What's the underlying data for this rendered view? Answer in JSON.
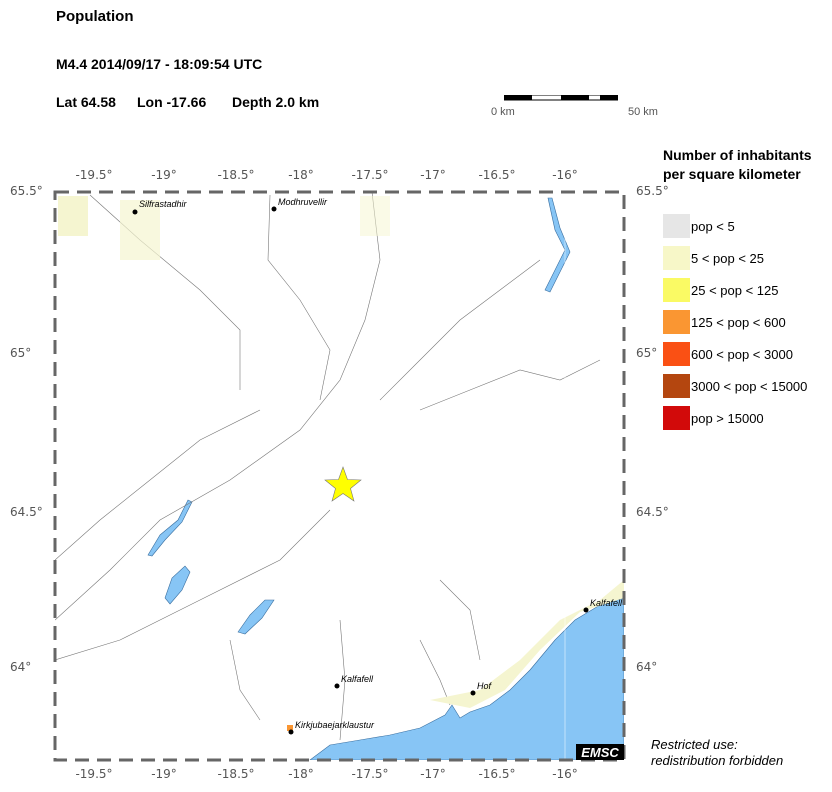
{
  "header": {
    "title": "Population",
    "event": "M4.4  2014/09/17 - 18:09:54 UTC",
    "lat": "Lat 64.58",
    "lon": "Lon -17.66",
    "depth": "Depth  2.0 km"
  },
  "scale_bar": {
    "start": "0 km",
    "end": "50 km"
  },
  "map": {
    "lon_ticks": [
      "-19.5°",
      "-19°",
      "-18.5°",
      "-18°",
      "-17.5°",
      "-17°",
      "-16.5°",
      "-16°"
    ],
    "lat_ticks": [
      "65.5°",
      "65°",
      "64.5°",
      "64°"
    ],
    "epicenter": {
      "lat": 64.58,
      "lon": -17.66,
      "color": "#ffff00"
    },
    "towns": [
      "Silfrastadhir",
      "Modhruvellir",
      "Kalfafell",
      "Kirkjubaejarklaustur",
      "Hof",
      "Kalfafell"
    ],
    "watermark": "EMSC",
    "colors": {
      "sea": "#87c5f5",
      "land": "#ffffff",
      "low_pop": "#f5f5d0"
    }
  },
  "legend": {
    "title_line1": "Number of inhabitants",
    "title_line2": "per square kilometer",
    "items": [
      {
        "label": "pop < 5",
        "color": "#e6e6e6"
      },
      {
        "label": "5 < pop < 25",
        "color": "#f7f7c8"
      },
      {
        "label": "25 < pop < 125",
        "color": "#fafa64"
      },
      {
        "label": "125 < pop < 600",
        "color": "#fa9632"
      },
      {
        "label": "600 < pop < 3000",
        "color": "#fa5014"
      },
      {
        "label": "3000 < pop < 15000",
        "color": "#b4460f"
      },
      {
        "label": "pop > 15000",
        "color": "#d20a0a"
      }
    ]
  },
  "notice": {
    "line1": "Restricted use:",
    "line2": "redistribution forbidden"
  }
}
